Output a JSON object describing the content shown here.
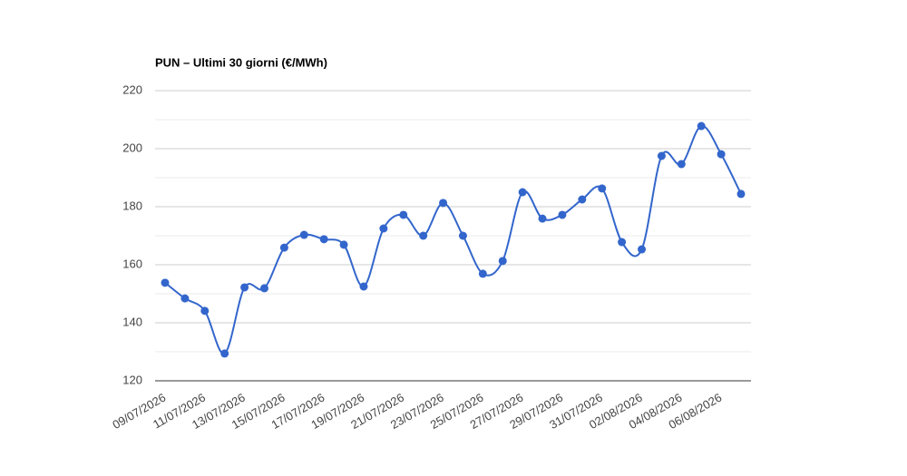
{
  "chart_data": {
    "type": "line",
    "title": "PUN – Ultimi 30 giorni (€/MWh)",
    "x": [
      "09/07/2026",
      null,
      "11/07/2026",
      null,
      "13/07/2026",
      null,
      "15/07/2026",
      null,
      "17/07/2026",
      null,
      "19/07/2026",
      null,
      "21/07/2026",
      null,
      "23/07/2026",
      null,
      "25/07/2026",
      null,
      "27/07/2026",
      null,
      "29/07/2026",
      null,
      "31/07/2026",
      null,
      "02/08/2026",
      null,
      "04/08/2026",
      null,
      "06/08/2026",
      null
    ],
    "values": [
      153.8,
      148.4,
      144.1,
      129.4,
      152.2,
      151.9,
      165.9,
      170.3,
      168.8,
      166.9,
      152.5,
      172.5,
      177.2,
      170.0,
      181.3,
      170.0,
      156.9,
      161.3,
      185.0,
      175.9,
      177.2,
      182.5,
      186.3,
      167.8,
      165.3,
      197.5,
      194.7,
      207.8,
      198.1,
      184.4
    ],
    "color": "#3366cc",
    "ylim": [
      120,
      220
    ],
    "yticks": [
      120,
      140,
      160,
      180,
      200,
      220
    ],
    "minor_yticks": [
      130,
      150,
      170,
      190,
      210
    ],
    "grid": true,
    "smooth": true
  }
}
